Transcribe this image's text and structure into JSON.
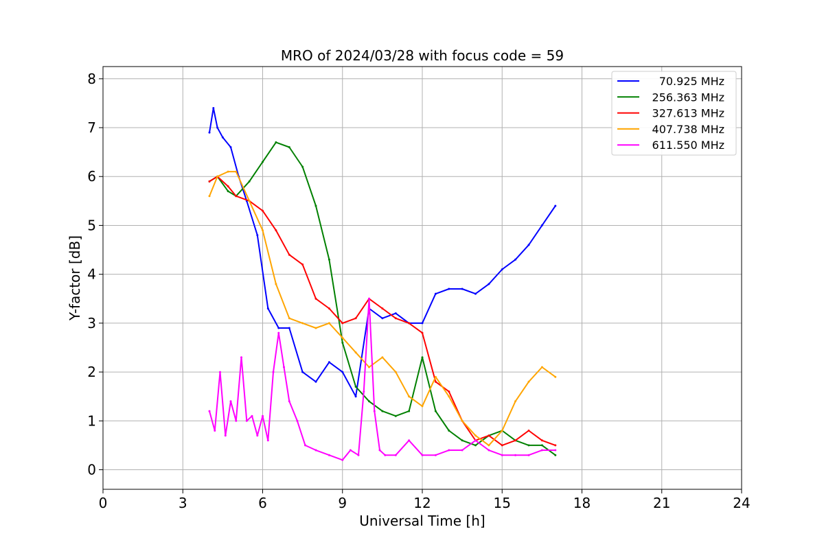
{
  "chart_data": {
    "type": "line",
    "title": "MRO of 2024/03/28 with focus code = 59",
    "xlabel": "Universal Time [h]",
    "ylabel": "Y-factor [dB]",
    "xlim": [
      0,
      24
    ],
    "ylim": [
      -0.4,
      8.25
    ],
    "xticks": [
      0,
      3,
      6,
      9,
      12,
      15,
      18,
      21,
      24
    ],
    "yticks": [
      0,
      1,
      2,
      3,
      4,
      5,
      6,
      7,
      8
    ],
    "grid": true,
    "legend_position": "top-right",
    "series": [
      {
        "name": "70.925 MHz",
        "color": "#0000ff",
        "x": [
          4.0,
          4.15,
          4.3,
          4.5,
          4.8,
          5.1,
          5.4,
          5.8,
          6.2,
          6.6,
          7.0,
          7.5,
          8.0,
          8.5,
          9.0,
          9.5,
          10.0,
          10.5,
          11.0,
          11.5,
          12.0,
          12.5,
          13.0,
          13.5,
          14.0,
          14.5,
          15.0,
          15.5,
          16.0,
          16.5,
          17.0
        ],
        "y": [
          6.9,
          7.4,
          7.0,
          6.8,
          6.6,
          6.0,
          5.5,
          4.8,
          3.3,
          2.9,
          2.9,
          2.0,
          1.8,
          2.2,
          2.0,
          1.5,
          3.3,
          3.1,
          3.2,
          3.0,
          3.0,
          3.6,
          3.7,
          3.7,
          3.6,
          3.8,
          4.1,
          4.3,
          4.6,
          5.0,
          5.4
        ]
      },
      {
        "name": "256.363 MHz",
        "color": "#008000",
        "x": [
          4.0,
          4.3,
          4.7,
          5.0,
          5.5,
          6.0,
          6.5,
          7.0,
          7.5,
          8.0,
          8.5,
          9.0,
          9.5,
          10.0,
          10.5,
          11.0,
          11.5,
          12.0,
          12.5,
          13.0,
          13.5,
          14.0,
          14.5,
          15.0,
          15.5,
          16.0,
          16.5,
          17.0
        ],
        "y": [
          5.9,
          6.0,
          5.7,
          5.6,
          5.9,
          6.3,
          6.7,
          6.6,
          6.2,
          5.4,
          4.3,
          2.6,
          1.7,
          1.4,
          1.2,
          1.1,
          1.2,
          2.3,
          1.2,
          0.8,
          0.6,
          0.5,
          0.7,
          0.8,
          0.6,
          0.5,
          0.5,
          0.3
        ]
      },
      {
        "name": "327.613 MHz",
        "color": "#ff0000",
        "x": [
          4.0,
          4.3,
          4.7,
          5.0,
          5.5,
          6.0,
          6.5,
          7.0,
          7.5,
          8.0,
          8.5,
          9.0,
          9.5,
          10.0,
          10.5,
          11.0,
          11.5,
          12.0,
          12.5,
          13.0,
          13.5,
          14.0,
          14.5,
          15.0,
          15.5,
          16.0,
          16.5,
          17.0
        ],
        "y": [
          5.9,
          6.0,
          5.8,
          5.6,
          5.5,
          5.3,
          4.9,
          4.4,
          4.2,
          3.5,
          3.3,
          3.0,
          3.1,
          3.5,
          3.3,
          3.1,
          3.0,
          2.8,
          1.8,
          1.6,
          1.0,
          0.6,
          0.7,
          0.5,
          0.6,
          0.8,
          0.6,
          0.5
        ]
      },
      {
        "name": "407.738 MHz",
        "color": "#ffa500",
        "x": [
          4.0,
          4.3,
          4.7,
          5.0,
          5.5,
          6.0,
          6.5,
          7.0,
          7.5,
          8.0,
          8.5,
          9.0,
          9.5,
          10.0,
          10.5,
          11.0,
          11.5,
          12.0,
          12.5,
          13.0,
          13.5,
          14.0,
          14.5,
          15.0,
          15.5,
          16.0,
          16.5,
          17.0
        ],
        "y": [
          5.6,
          6.0,
          6.1,
          6.1,
          5.5,
          4.9,
          3.8,
          3.1,
          3.0,
          2.9,
          3.0,
          2.7,
          2.4,
          2.1,
          2.3,
          2.0,
          1.5,
          1.3,
          1.9,
          1.5,
          1.0,
          0.7,
          0.5,
          0.8,
          1.4,
          1.8,
          2.1,
          1.9
        ]
      },
      {
        "name": "611.550 MHz",
        "color": "#ff00ff",
        "x": [
          4.0,
          4.2,
          4.4,
          4.6,
          4.8,
          5.0,
          5.2,
          5.4,
          5.6,
          5.8,
          6.0,
          6.2,
          6.4,
          6.6,
          6.8,
          7.0,
          7.3,
          7.6,
          8.0,
          8.5,
          9.0,
          9.3,
          9.6,
          9.8,
          10.0,
          10.2,
          10.4,
          10.6,
          11.0,
          11.5,
          12.0,
          12.5,
          13.0,
          13.5,
          14.0,
          14.5,
          15.0,
          15.5,
          16.0,
          16.5,
          17.0
        ],
        "y": [
          1.2,
          0.8,
          2.0,
          0.7,
          1.4,
          1.0,
          2.3,
          1.0,
          1.1,
          0.7,
          1.1,
          0.6,
          2.0,
          2.8,
          2.1,
          1.4,
          1.0,
          0.5,
          0.4,
          0.3,
          0.2,
          0.4,
          0.3,
          1.6,
          3.5,
          1.2,
          0.4,
          0.3,
          0.3,
          0.6,
          0.3,
          0.3,
          0.4,
          0.4,
          0.6,
          0.4,
          0.3,
          0.3,
          0.3,
          0.4,
          0.4
        ]
      }
    ]
  }
}
